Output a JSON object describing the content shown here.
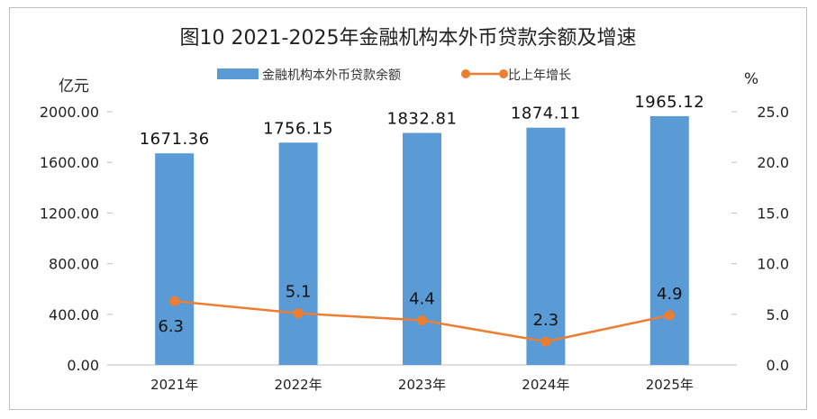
{
  "chart_data": {
    "type": "bar+line",
    "title": "图10  2021-2025年金融机构本外币贷款余额及增速",
    "categories": [
      "2021年",
      "2022年",
      "2023年",
      "2024年",
      "2025年"
    ],
    "series": [
      {
        "name": "金融机构本外币贷款余额",
        "type": "bar",
        "axis": "left",
        "values": [
          1671.36,
          1756.15,
          1832.81,
          1874.11,
          1965.12
        ],
        "value_labels": [
          "1671.36",
          "1756.15",
          "1832.81",
          "1874.11",
          "1965.12"
        ],
        "color": "#5b9bd5"
      },
      {
        "name": "比上年增长",
        "type": "line",
        "axis": "right",
        "values": [
          6.3,
          5.1,
          4.4,
          2.3,
          4.9
        ],
        "value_labels": [
          "6.3",
          "5.1",
          "4.4",
          "2.3",
          "4.9"
        ],
        "color": "#ed7d31"
      }
    ],
    "left_axis": {
      "unit": "亿元",
      "range": [
        0,
        2000
      ],
      "ticks": [
        "0.00",
        "400.00",
        "800.00",
        "1200.00",
        "1600.00",
        "2000.00"
      ]
    },
    "right_axis": {
      "unit": "%",
      "range": [
        0,
        25
      ],
      "ticks": [
        "0.0",
        "5.0",
        "10.0",
        "15.0",
        "20.0",
        "25.0"
      ]
    },
    "legend_position": "top-center"
  }
}
